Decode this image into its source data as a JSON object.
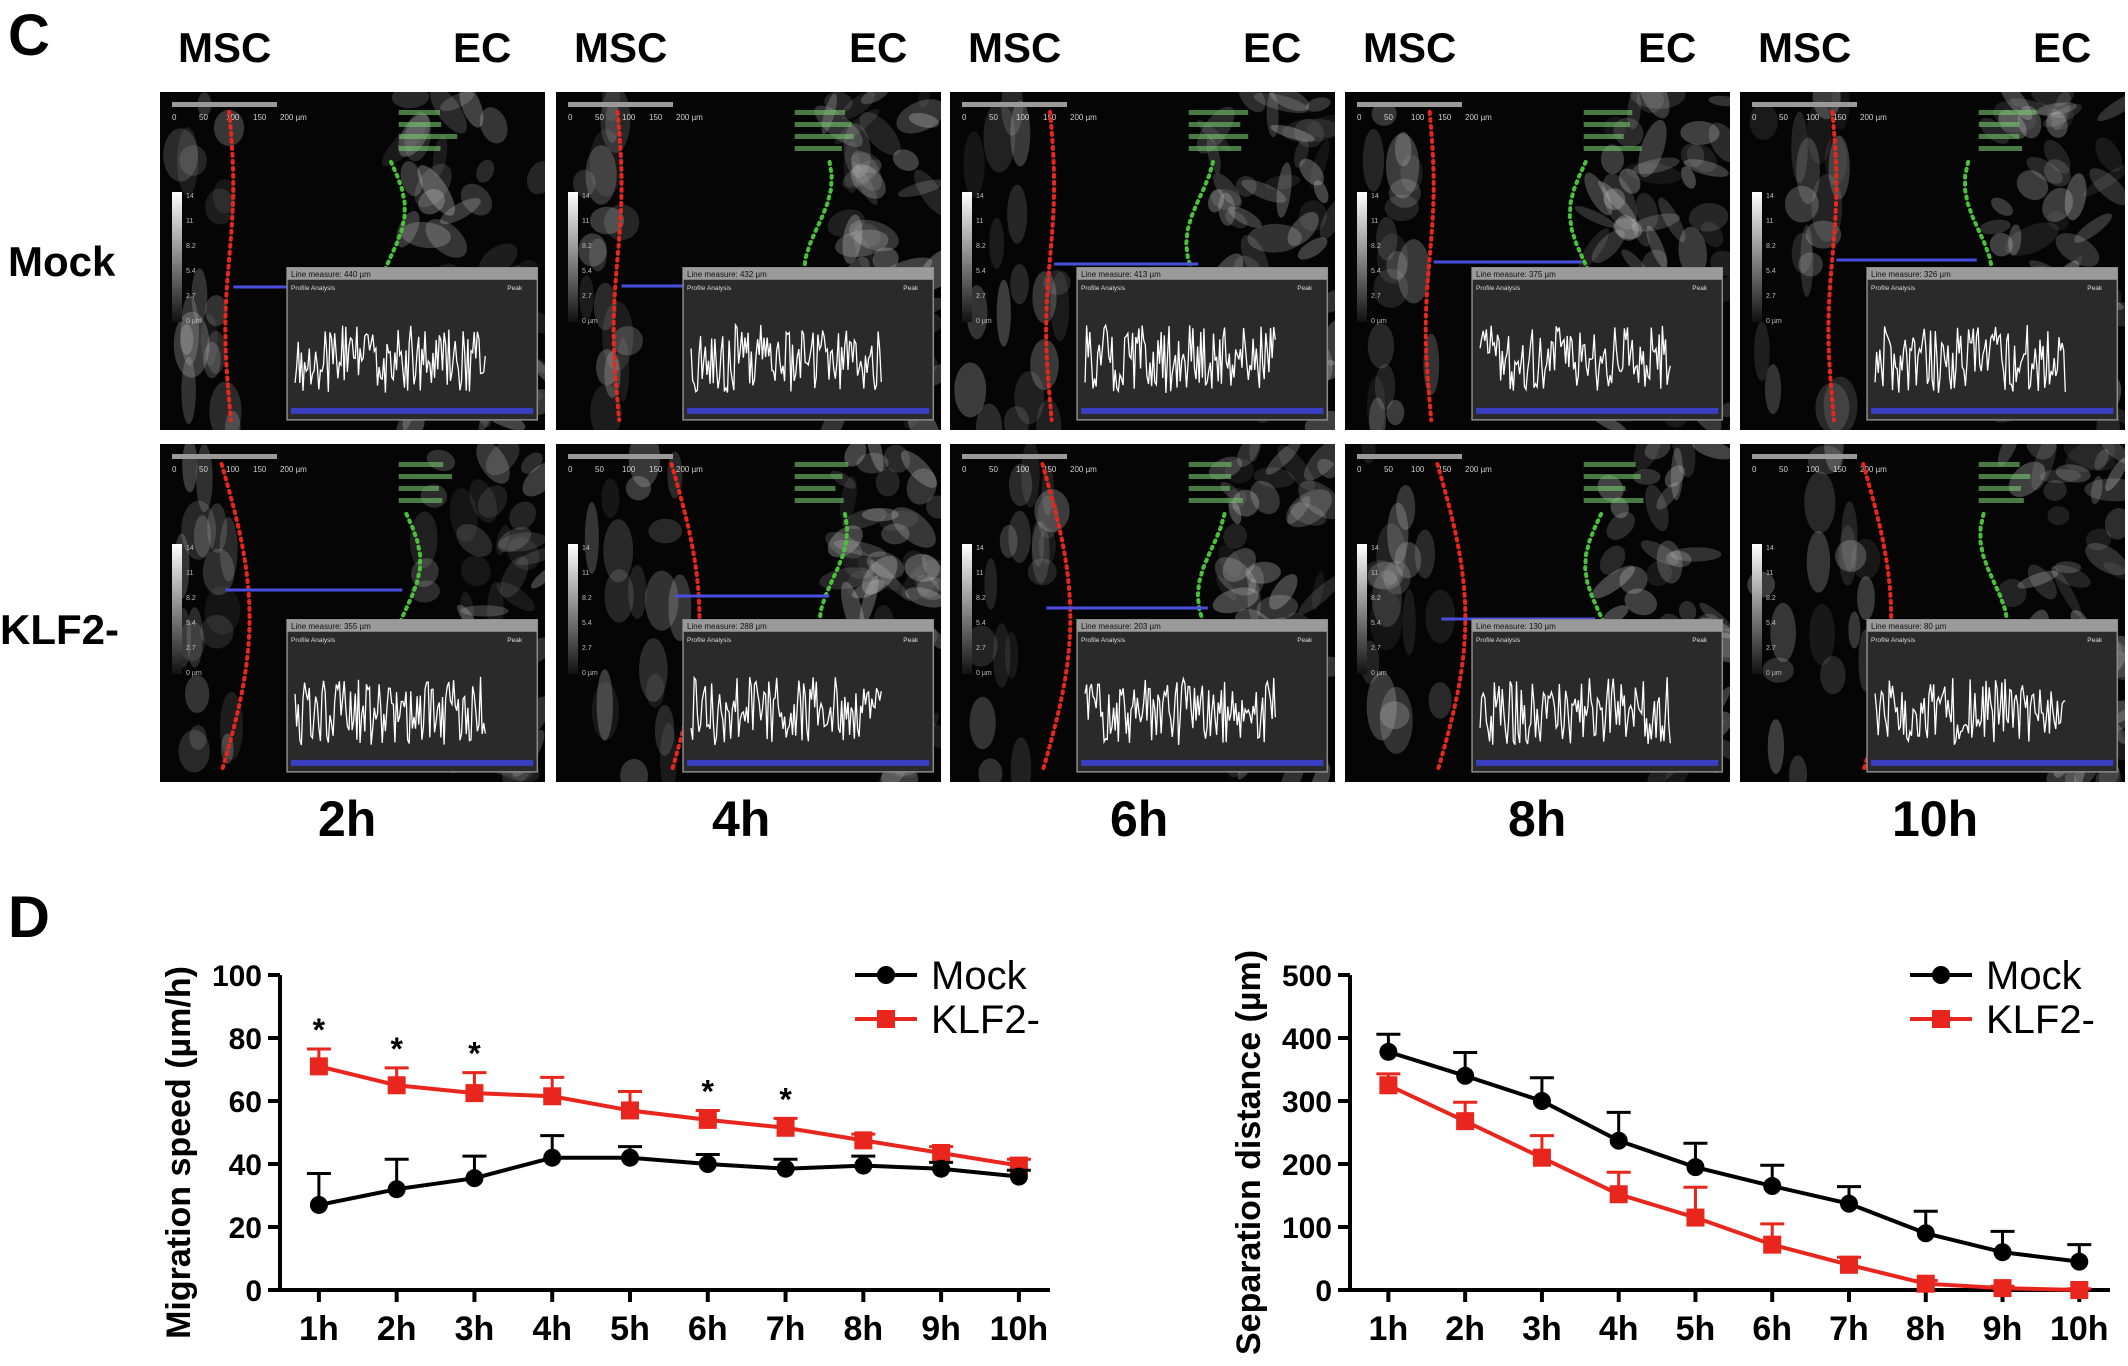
{
  "panel_c": {
    "letter": "C",
    "column_left_label": "MSC",
    "column_right_label": "EC",
    "rows": [
      {
        "label": "Mock",
        "measures": [
          "Line measure: 440 µm",
          "Line measure: 432 µm",
          "Line measure: 413 µm",
          "Line measure: 375 µm",
          "Line measure: 326 µm"
        ]
      },
      {
        "label": "KLF2-",
        "measures": [
          "Line measure: 355 µm",
          "Line measure: 288 µm",
          "Line measure: 203 µm",
          "Line measure: 130 µm",
          "Line measure: 80 µm"
        ]
      }
    ],
    "times": [
      "2h",
      "4h",
      "6h",
      "8h",
      "10h"
    ],
    "scale_ticks": [
      "0",
      "50",
      "100",
      "150",
      "200 µm"
    ],
    "intensity_ticks": [
      "14",
      "11",
      "8.2",
      "5.4",
      "2.7",
      "0 µm"
    ],
    "profile_title": "Profile Analysis",
    "peak_label": "Peak",
    "colors": {
      "msc_boundary": "#e8261d",
      "ec_boundary": "#49c23a",
      "measure_line": "#4a4ee0",
      "profile_trace": "#ffffff"
    }
  },
  "panel_d": {
    "letter": "D",
    "charts": [
      {
        "type": "line",
        "ylabel": "Migration speed (µm/h)",
        "xlabel": "",
        "categories": [
          "1h",
          "2h",
          "3h",
          "4h",
          "5h",
          "6h",
          "7h",
          "8h",
          "9h",
          "10h"
        ],
        "ylim": [
          0,
          100
        ],
        "yticks": [
          "0",
          "20",
          "40",
          "60",
          "80",
          "100"
        ],
        "legend_position": "top-right",
        "series": [
          {
            "name": "Mock",
            "color": "#000000",
            "marker": "circle",
            "values": [
              27,
              32,
              35.5,
              42,
              42,
              40,
              38.5,
              39.5,
              38.5,
              36
            ],
            "errors": [
              10,
              9.5,
              7,
              7,
              3.5,
              3,
              3,
              3,
              2,
              2
            ]
          },
          {
            "name": "KLF2-",
            "color": "#e8261d",
            "marker": "square",
            "values": [
              71,
              65,
              62.5,
              61.5,
              57,
              54,
              51.5,
              47.5,
              43.5,
              39.5
            ],
            "errors": [
              5.5,
              5.5,
              6.5,
              6,
              6,
              3,
              3,
              2,
              2,
              2
            ]
          }
        ],
        "significance": {
          "symbol": "*",
          "categories": [
            "1h",
            "2h",
            "3h",
            "6h",
            "7h"
          ]
        }
      },
      {
        "type": "line",
        "ylabel": "Separation distance (µm)",
        "xlabel": "",
        "categories": [
          "1h",
          "2h",
          "3h",
          "4h",
          "5h",
          "6h",
          "7h",
          "8h",
          "9h",
          "10h"
        ],
        "ylim": [
          0,
          500
        ],
        "yticks": [
          "0",
          "100",
          "200",
          "300",
          "400",
          "500"
        ],
        "legend_position": "top-right",
        "series": [
          {
            "name": "Mock",
            "color": "#000000",
            "marker": "circle",
            "values": [
              378,
              340,
              300,
              237,
              195,
              165,
              137,
              90,
              60,
              45
            ],
            "errors": [
              28,
              37,
              37,
              45,
              38,
              33,
              27,
              35,
              33,
              27
            ]
          },
          {
            "name": "KLF2-",
            "color": "#e8261d",
            "marker": "square",
            "values": [
              325,
              268,
              210,
              152,
              115,
              72,
              40,
              10,
              3,
              0
            ],
            "errors": [
              18,
              30,
              35,
              35,
              48,
              33,
              12,
              5,
              3,
              2
            ]
          }
        ]
      }
    ]
  }
}
